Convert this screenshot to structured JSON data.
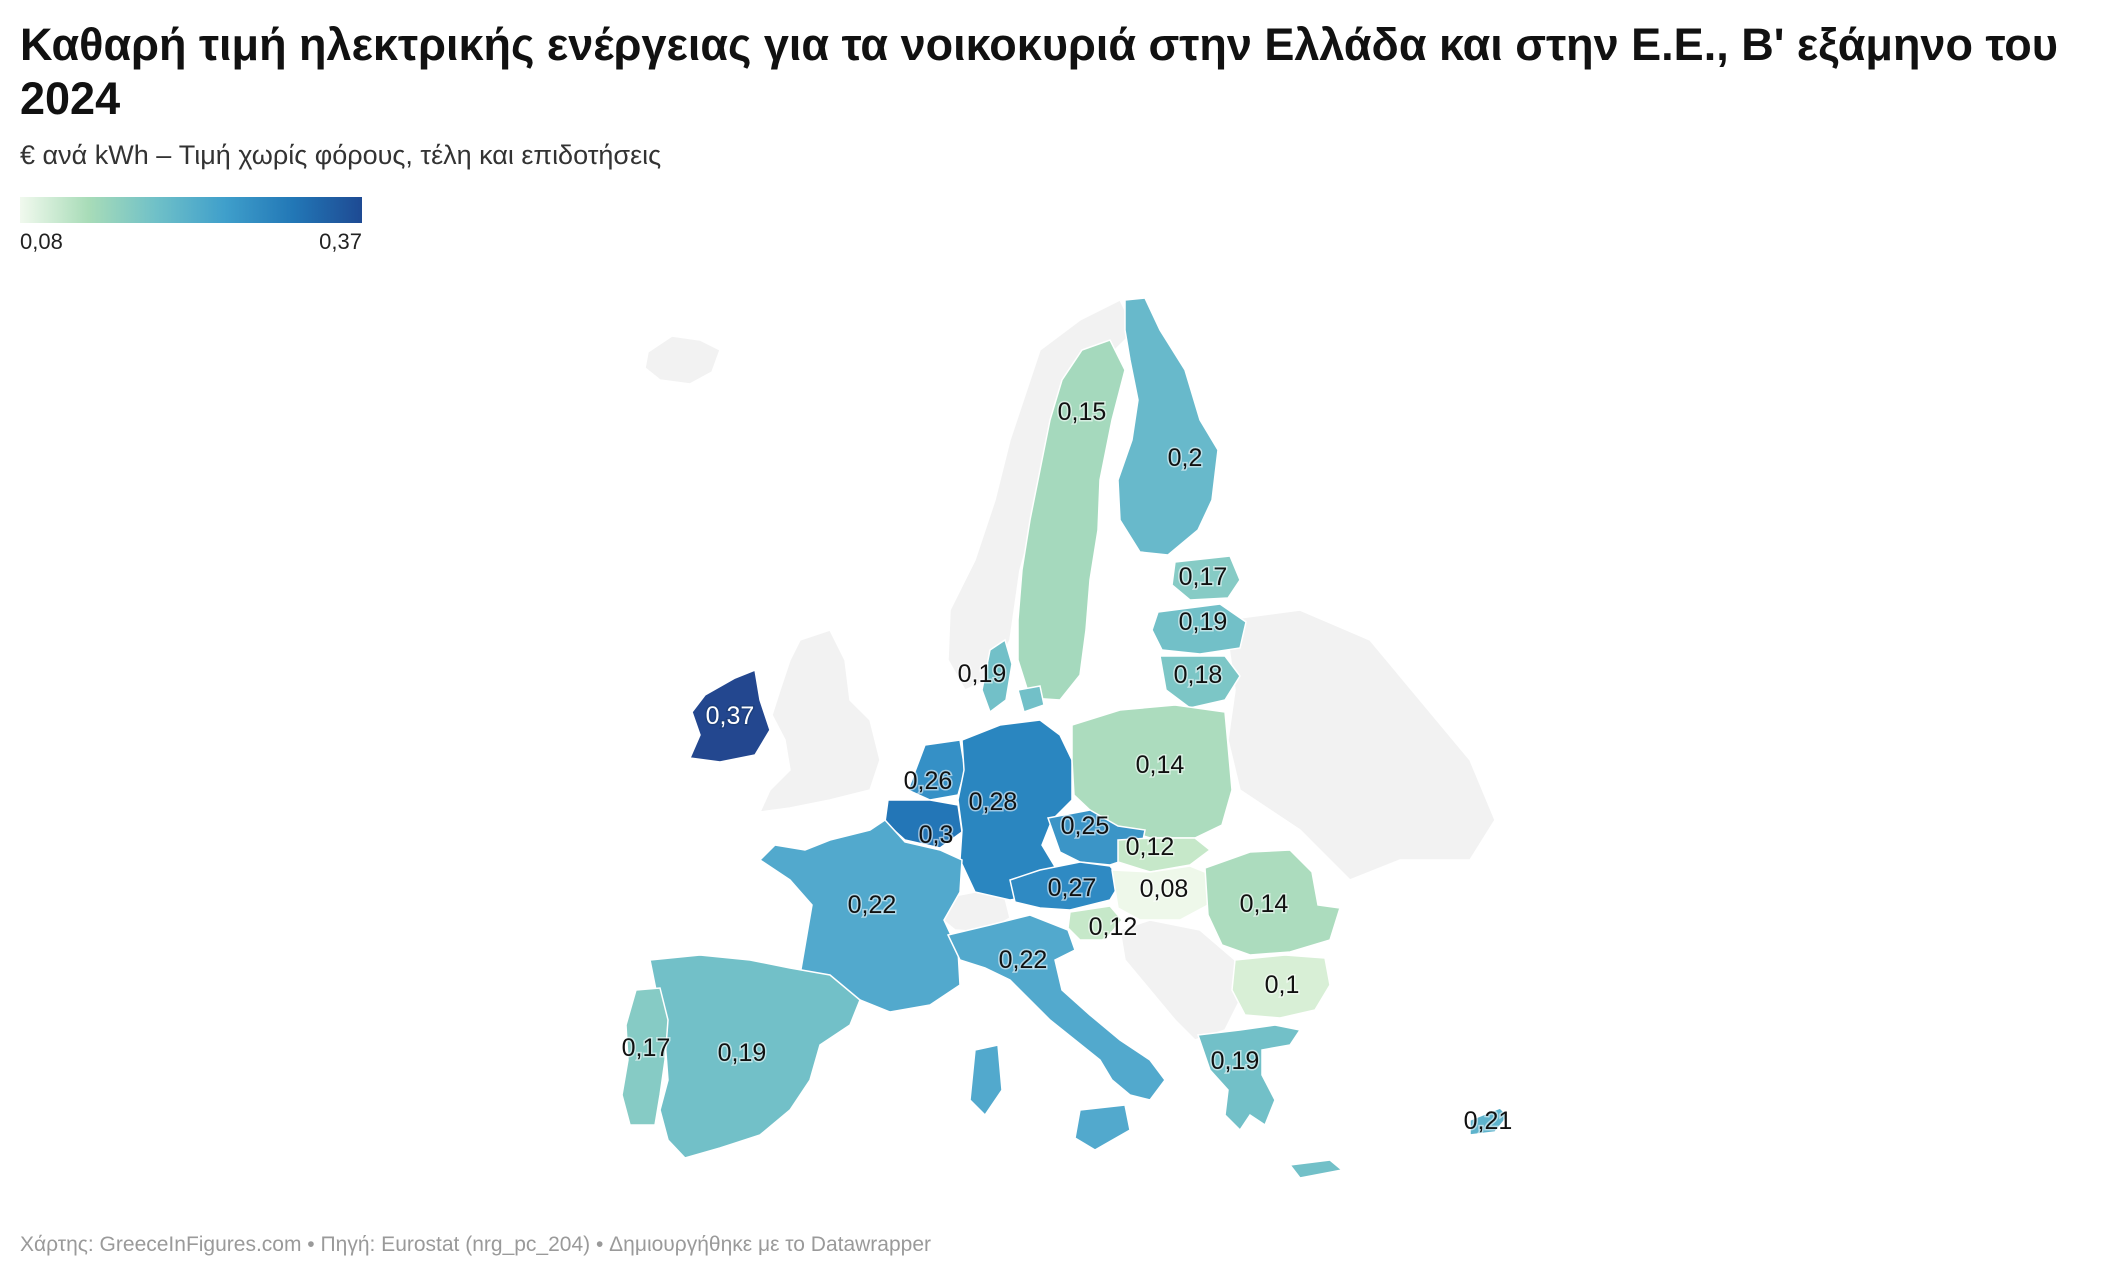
{
  "title": "Καθαρή τιμή ηλεκτρικής ενέργειας για τα νοικοκυριά στην Ελλάδα και στην Ε.Ε., Β' εξάμηνο του 2024",
  "subtitle": "€ ανά kWh – Τιμή χωρίς φόρους, τέλη και επιδοτήσεις",
  "legend": {
    "min": "0,08",
    "max": "0,37"
  },
  "color_scale": [
    "#f1f9ee",
    "#a8dcb8",
    "#6fc0c8",
    "#3f9fcb",
    "#2277b6",
    "#1e4a93"
  ],
  "no_data_color": "#f2f2f2",
  "countries": [
    {
      "id": "sweden",
      "label": "0,15",
      "value": 0.15,
      "color": "#a5d9bd"
    },
    {
      "id": "finland",
      "label": "0,2",
      "value": 0.2,
      "color": "#68b9cb"
    },
    {
      "id": "estonia",
      "label": "0,17",
      "value": 0.17,
      "color": "#86cbc5"
    },
    {
      "id": "latvia",
      "label": "0,19",
      "value": 0.19,
      "color": "#72c0c8"
    },
    {
      "id": "lithuania",
      "label": "0,18",
      "value": 0.18,
      "color": "#7cc6c6"
    },
    {
      "id": "denmark",
      "label": "0,19",
      "value": 0.19,
      "color": "#72c0c8"
    },
    {
      "id": "ireland",
      "label": "0,37",
      "value": 0.37,
      "color": "#23478f"
    },
    {
      "id": "netherlands",
      "label": "0,26",
      "value": 0.26,
      "color": "#3590c6"
    },
    {
      "id": "belgium",
      "label": "0,3",
      "value": 0.3,
      "color": "#2376b7"
    },
    {
      "id": "germany",
      "label": "0,28",
      "value": 0.28,
      "color": "#2a86c0"
    },
    {
      "id": "poland",
      "label": "0,14",
      "value": 0.14,
      "color": "#acdcbe"
    },
    {
      "id": "czechia",
      "label": "0,25",
      "value": 0.25,
      "color": "#3b95c7"
    },
    {
      "id": "slovakia",
      "label": "0,12",
      "value": 0.12,
      "color": "#c6e8c9"
    },
    {
      "id": "austria",
      "label": "0,27",
      "value": 0.27,
      "color": "#2f8ac3"
    },
    {
      "id": "hungary",
      "label": "0,08",
      "value": 0.08,
      "color": "#eef8ea"
    },
    {
      "id": "slovenia",
      "label": "0,12",
      "value": 0.12,
      "color": "#c6e8c9"
    },
    {
      "id": "romania",
      "label": "0,14",
      "value": 0.14,
      "color": "#acdcbe"
    },
    {
      "id": "bulgaria",
      "label": "0,1",
      "value": 0.1,
      "color": "#d8efd6"
    },
    {
      "id": "france",
      "label": "0,22",
      "value": 0.22,
      "color": "#52a9cd"
    },
    {
      "id": "italy",
      "label": "0,22",
      "value": 0.22,
      "color": "#52a9cd"
    },
    {
      "id": "spain",
      "label": "0,19",
      "value": 0.19,
      "color": "#72c0c8"
    },
    {
      "id": "portugal",
      "label": "0,17",
      "value": 0.17,
      "color": "#86cbc5"
    },
    {
      "id": "greece",
      "label": "0,19",
      "value": 0.19,
      "color": "#72c0c8"
    },
    {
      "id": "cyprus",
      "label": "0,21",
      "value": 0.21,
      "color": "#5eb3cc"
    }
  ],
  "footer": "Χάρτης: GreeceInFigures.com • Πηγή: Eurostat (nrg_pc_204) • Δημιουργήθηκε με το Datawrapper"
}
